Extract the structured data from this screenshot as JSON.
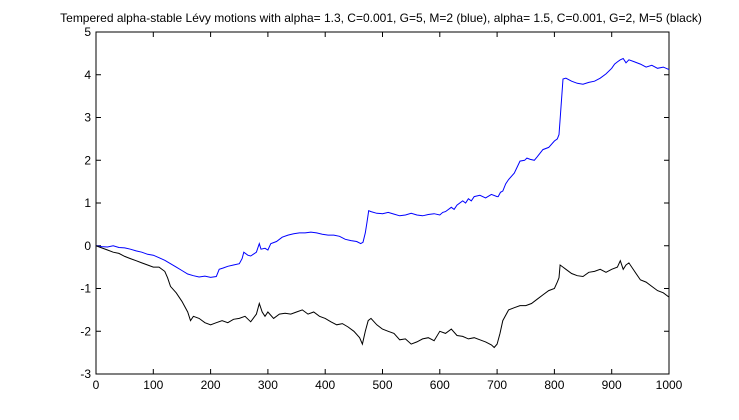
{
  "chart_data": {
    "type": "line",
    "title": "Tempered alpha-stable Lévy motions with alpha= 1.3, C=0.001, G=5, M=2 (blue), alpha= 1.5, C=0.001, G=2, M=5 (black)",
    "xlabel": "",
    "ylabel": "",
    "xlim": [
      0,
      1000
    ],
    "ylim": [
      -3,
      5
    ],
    "x_ticks": [
      0,
      100,
      200,
      300,
      400,
      500,
      600,
      700,
      800,
      900,
      1000
    ],
    "y_ticks": [
      -3,
      -2,
      -1,
      0,
      1,
      2,
      3,
      4,
      5
    ],
    "x_tick_labels": [
      "0",
      "100",
      "200",
      "300",
      "400",
      "500",
      "600",
      "700",
      "800",
      "900",
      "1000"
    ],
    "y_tick_labels": [
      "-3",
      "-2",
      "-1",
      "0",
      "1",
      "2",
      "3",
      "4",
      "5"
    ],
    "grid": false,
    "colors": {
      "series_1": "#0000ff",
      "series_2": "#000000",
      "axes": "#000000",
      "background": "#ffffff"
    },
    "series": [
      {
        "color": "#0000ff",
        "x": [
          0,
          10,
          20,
          30,
          40,
          50,
          60,
          70,
          80,
          90,
          100,
          110,
          120,
          130,
          140,
          150,
          160,
          170,
          180,
          190,
          200,
          210,
          215,
          222,
          230,
          240,
          250,
          255,
          258,
          265,
          270,
          280,
          285,
          288,
          295,
          300,
          305,
          315,
          325,
          335,
          345,
          355,
          365,
          375,
          385,
          395,
          405,
          415,
          425,
          435,
          445,
          455,
          462,
          466,
          470,
          473,
          476,
          480,
          490,
          500,
          510,
          520,
          530,
          540,
          550,
          560,
          570,
          580,
          590,
          600,
          605,
          610,
          620,
          625,
          630,
          640,
          645,
          650,
          655,
          660,
          670,
          680,
          690,
          700,
          702,
          706,
          710,
          715,
          720,
          730,
          740,
          748,
          752,
          758,
          765,
          770,
          780,
          790,
          800,
          805,
          808,
          810,
          815,
          820,
          830,
          840,
          850,
          860,
          870,
          880,
          890,
          900,
          905,
          910,
          915,
          920,
          925,
          930,
          940,
          950,
          960,
          970,
          980,
          990,
          1000
        ],
        "values": [
          0.0,
          -0.02,
          -0.03,
          0.0,
          -0.04,
          -0.05,
          -0.08,
          -0.12,
          -0.15,
          -0.2,
          -0.22,
          -0.28,
          -0.34,
          -0.42,
          -0.5,
          -0.58,
          -0.66,
          -0.7,
          -0.73,
          -0.71,
          -0.74,
          -0.72,
          -0.55,
          -0.52,
          -0.48,
          -0.45,
          -0.42,
          -0.3,
          -0.15,
          -0.22,
          -0.24,
          -0.15,
          0.05,
          -0.08,
          -0.06,
          -0.1,
          0.05,
          0.1,
          0.2,
          0.25,
          0.28,
          0.3,
          0.3,
          0.32,
          0.3,
          0.27,
          0.25,
          0.25,
          0.22,
          0.15,
          0.12,
          0.1,
          0.05,
          0.08,
          0.3,
          0.55,
          0.82,
          0.8,
          0.76,
          0.75,
          0.78,
          0.74,
          0.7,
          0.72,
          0.76,
          0.72,
          0.7,
          0.73,
          0.75,
          0.72,
          0.78,
          0.8,
          0.9,
          0.85,
          0.95,
          1.05,
          1.0,
          1.1,
          1.05,
          1.15,
          1.18,
          1.12,
          1.2,
          1.15,
          1.15,
          1.25,
          1.28,
          1.45,
          1.55,
          1.7,
          1.98,
          2.0,
          2.05,
          2.02,
          2.0,
          2.08,
          2.25,
          2.3,
          2.45,
          2.5,
          2.6,
          2.95,
          3.9,
          3.92,
          3.85,
          3.8,
          3.78,
          3.82,
          3.85,
          3.92,
          4.02,
          4.15,
          4.25,
          4.3,
          4.35,
          4.38,
          4.28,
          4.35,
          4.3,
          4.25,
          4.18,
          4.22,
          4.15,
          4.18,
          4.12
        ]
      },
      {
        "color": "#000000",
        "x": [
          0,
          10,
          20,
          30,
          40,
          50,
          60,
          70,
          80,
          90,
          100,
          110,
          120,
          125,
          130,
          140,
          150,
          160,
          165,
          170,
          180,
          190,
          200,
          210,
          220,
          230,
          240,
          250,
          260,
          270,
          280,
          285,
          290,
          295,
          300,
          310,
          320,
          330,
          340,
          350,
          360,
          370,
          380,
          390,
          400,
          410,
          420,
          430,
          440,
          450,
          460,
          465,
          470,
          475,
          480,
          490,
          500,
          510,
          520,
          530,
          540,
          550,
          560,
          570,
          580,
          590,
          600,
          610,
          620,
          630,
          640,
          650,
          660,
          670,
          680,
          690,
          695,
          700,
          705,
          710,
          720,
          730,
          740,
          750,
          760,
          770,
          780,
          790,
          800,
          805,
          808,
          810,
          815,
          820,
          830,
          840,
          850,
          860,
          870,
          880,
          890,
          900,
          910,
          915,
          920,
          925,
          930,
          940,
          950,
          960,
          970,
          980,
          990,
          1000
        ],
        "values": [
          0.0,
          -0.05,
          -0.1,
          -0.15,
          -0.18,
          -0.25,
          -0.3,
          -0.35,
          -0.4,
          -0.45,
          -0.5,
          -0.5,
          -0.6,
          -0.75,
          -0.95,
          -1.1,
          -1.3,
          -1.55,
          -1.75,
          -1.65,
          -1.7,
          -1.8,
          -1.85,
          -1.8,
          -1.75,
          -1.8,
          -1.72,
          -1.7,
          -1.65,
          -1.78,
          -1.6,
          -1.35,
          -1.55,
          -1.65,
          -1.55,
          -1.7,
          -1.6,
          -1.58,
          -1.6,
          -1.55,
          -1.5,
          -1.6,
          -1.55,
          -1.65,
          -1.7,
          -1.78,
          -1.85,
          -1.82,
          -1.9,
          -2.0,
          -2.15,
          -2.3,
          -2.0,
          -1.75,
          -1.7,
          -1.85,
          -1.95,
          -2.0,
          -2.05,
          -2.2,
          -2.18,
          -2.3,
          -2.25,
          -2.18,
          -2.15,
          -2.22,
          -2.0,
          -2.05,
          -1.95,
          -2.1,
          -2.12,
          -2.18,
          -2.15,
          -2.2,
          -2.25,
          -2.32,
          -2.38,
          -2.3,
          -2.05,
          -1.75,
          -1.5,
          -1.45,
          -1.4,
          -1.4,
          -1.35,
          -1.25,
          -1.15,
          -1.05,
          -1.0,
          -0.85,
          -0.75,
          -0.45,
          -0.5,
          -0.55,
          -0.65,
          -0.7,
          -0.72,
          -0.62,
          -0.6,
          -0.55,
          -0.62,
          -0.55,
          -0.5,
          -0.35,
          -0.55,
          -0.45,
          -0.4,
          -0.6,
          -0.8,
          -0.85,
          -0.95,
          -1.05,
          -1.1,
          -1.2
        ]
      }
    ]
  }
}
